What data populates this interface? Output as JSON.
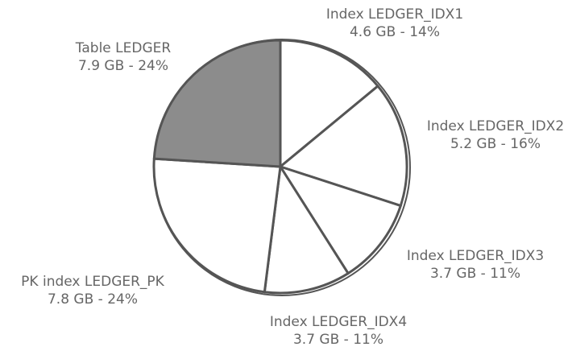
{
  "chart_data": {
    "type": "pie",
    "categories": [
      "Index LEDGER_IDX1",
      "Index LEDGER_IDX2",
      "Index LEDGER_IDX3",
      "Index LEDGER_IDX4",
      "PK index LEDGER_PK",
      "Table LEDGER"
    ],
    "values": [
      14,
      16,
      11,
      11,
      24,
      24
    ],
    "value_labels": [
      "4.6 GB - 14%",
      "5.2 GB - 16%",
      "3.7 GB - 11%",
      "3.7 GB - 11%",
      "7.8 GB - 24%",
      "7.9 GB - 24%"
    ],
    "colors": [
      "#ffffff",
      "#ffffff",
      "#ffffff",
      "#ffffff",
      "#ffffff",
      "#8c8c8c"
    ]
  }
}
